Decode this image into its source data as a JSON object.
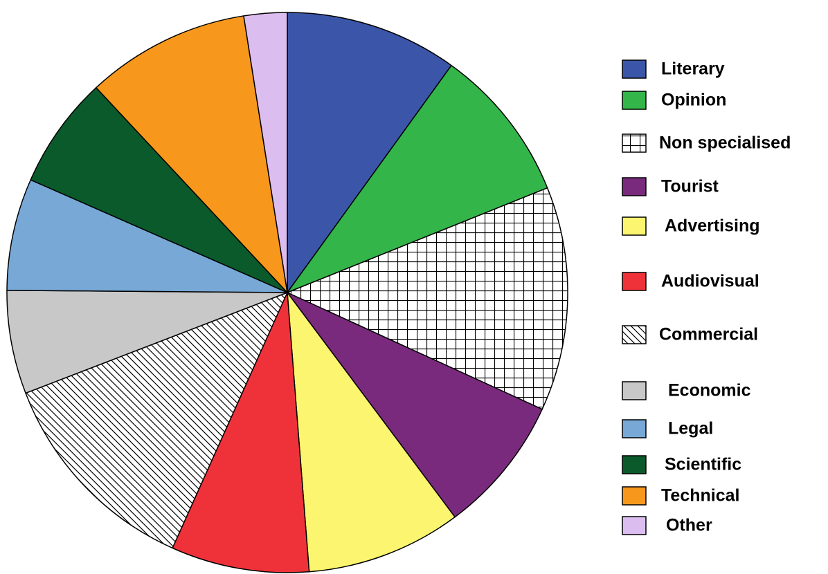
{
  "chart_data": {
    "type": "pie",
    "categories": [
      "Literary",
      "Opinion",
      "Non specialised",
      "Tourist",
      "Advertising",
      "Audiovisual",
      "Commercial",
      "Economic",
      "Legal",
      "Scientific",
      "Technical",
      "Other"
    ],
    "values": [
      10,
      9,
      13,
      8,
      9,
      8,
      12.5,
      6,
      6.5,
      6.5,
      9.5,
      2.5
    ],
    "colors": [
      "#3b56a8",
      "#33b54a",
      "#ffffff",
      "#7a2a7c",
      "#fbf56f",
      "#ef323a",
      "#ffffff",
      "#c8c8c8",
      "#77a8d6",
      "#0b5a2c",
      "#f7981d",
      "#dcbdf0"
    ],
    "patterns": [
      null,
      null,
      "grid",
      null,
      null,
      null,
      "diagonal",
      null,
      null,
      null,
      null,
      null
    ],
    "legend": "right"
  }
}
